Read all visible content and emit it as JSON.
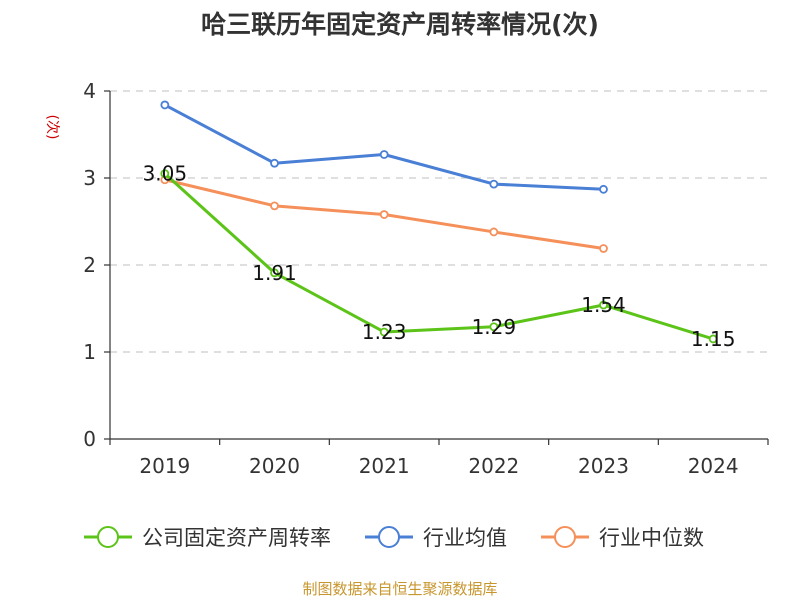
{
  "chart_data": {
    "type": "line",
    "title": "哈三联历年固定资产周转率情况(次)",
    "ylabel": "(次)",
    "xlabel": "",
    "ylim": [
      0,
      4
    ],
    "yticks": [
      0,
      1,
      2,
      3,
      4
    ],
    "grid": true,
    "categories": [
      "2019",
      "2020",
      "2021",
      "2022",
      "2023",
      "2024"
    ],
    "series": [
      {
        "name": "公司固定资产周转率",
        "color": "#5cc418",
        "values": [
          3.05,
          1.91,
          1.23,
          1.29,
          1.54,
          1.15
        ],
        "show_labels": true
      },
      {
        "name": "行业均值",
        "color": "#4a7fd6",
        "values": [
          3.84,
          3.17,
          3.27,
          2.93,
          2.87,
          null
        ],
        "show_labels": false
      },
      {
        "name": "行业中位数",
        "color": "#f5905a",
        "values": [
          2.98,
          2.68,
          2.58,
          2.38,
          2.19,
          null
        ],
        "show_labels": false
      }
    ],
    "legend_position": "bottom",
    "source": "制图数据来自恒生聚源数据库"
  },
  "colors": {
    "ylabel": "#cc0000",
    "source": "#c8962e",
    "axis": "#333333",
    "grid": "#cccccc"
  }
}
